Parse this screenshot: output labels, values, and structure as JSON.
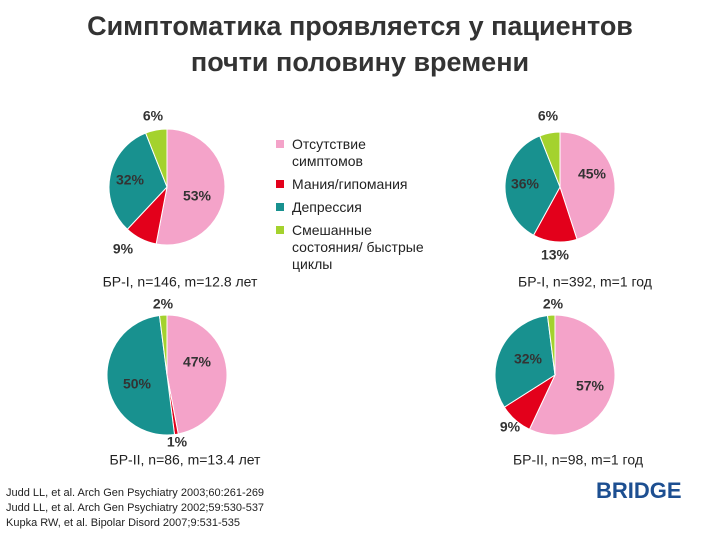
{
  "title": "Симптоматика проявляется у пациентов\nпочти половину времени",
  "legend": {
    "labels": [
      "Отсутствие симптомов",
      "Мания/гипомания",
      "Депрессия",
      "Смешанные состояния/ быстрые циклы"
    ],
    "colors": [
      "#f4a3c9",
      "#e3001b",
      "#18918f",
      "#a4d22e"
    ]
  },
  "chart_data": [
    {
      "type": "pie",
      "caption": "БР-I, n=146, m=12.8 лет",
      "values": [
        53,
        9,
        32,
        6
      ],
      "value_labels": [
        "53%",
        "9%",
        "32%",
        "6%"
      ]
    },
    {
      "type": "pie",
      "caption": "БР-I, n=392, m=1 год",
      "values": [
        45,
        13,
        36,
        6
      ],
      "value_labels": [
        "45%",
        "13%",
        "36%",
        "6%"
      ]
    },
    {
      "type": "pie",
      "caption": "БР-II, n=86, m=13.4 лет",
      "values": [
        47,
        1,
        50,
        2
      ],
      "value_labels": [
        "47%",
        "1%",
        "50%",
        "2%"
      ]
    },
    {
      "type": "pie",
      "caption": "БР-II, n=98, m=1 год",
      "values": [
        57,
        9,
        32,
        2
      ],
      "value_labels": [
        "57%",
        "9%",
        "32%",
        "2%"
      ]
    }
  ],
  "references": [
    "Judd LL, et al. Arch Gen Psychiatry 2003;60:261-269",
    "Judd LL, et al. Arch Gen Psychiatry 2002;59:530-537",
    "Kupka RW, et al. Bipolar Disord 2007;9:531-535"
  ],
  "logo": "BRIDGE"
}
